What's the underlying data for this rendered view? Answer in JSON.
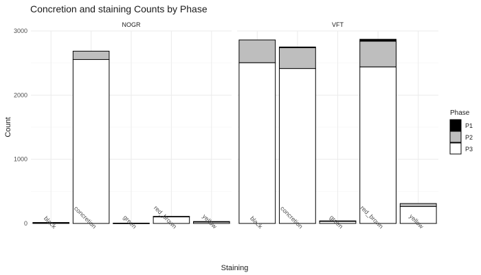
{
  "chart_data": {
    "type": "bar",
    "stacked": true,
    "title": "Concretion and staining Counts by Phase",
    "xlabel": "Staining",
    "ylabel": "Count",
    "ylim": [
      0,
      3000
    ],
    "yticks": [
      0,
      1000,
      2000,
      3000
    ],
    "grid": true,
    "legend": {
      "title": "Phase",
      "position": "right",
      "entries": [
        {
          "name": "P1",
          "color": "#000000"
        },
        {
          "name": "P2",
          "color": "#bebebe"
        },
        {
          "name": "P3",
          "color": "#ffffff"
        }
      ]
    },
    "categories": [
      "black",
      "concretion",
      "green",
      "red_brown",
      "yellow"
    ],
    "facets": [
      {
        "label": "NOGR",
        "series": [
          {
            "name": "P1",
            "values": [
              0,
              0,
              0,
              0,
              0
            ]
          },
          {
            "name": "P2",
            "values": [
              5,
              130,
              0,
              5,
              5
            ]
          },
          {
            "name": "P3",
            "values": [
              10,
              2555,
              5,
              105,
              25
            ]
          }
        ]
      },
      {
        "label": "VFT",
        "series": [
          {
            "name": "P1",
            "values": [
              0,
              10,
              0,
              30,
              0
            ]
          },
          {
            "name": "P2",
            "values": [
              355,
              325,
              5,
              400,
              45
            ]
          },
          {
            "name": "P3",
            "values": [
              2505,
              2415,
              35,
              2440,
              265
            ]
          }
        ]
      }
    ]
  }
}
